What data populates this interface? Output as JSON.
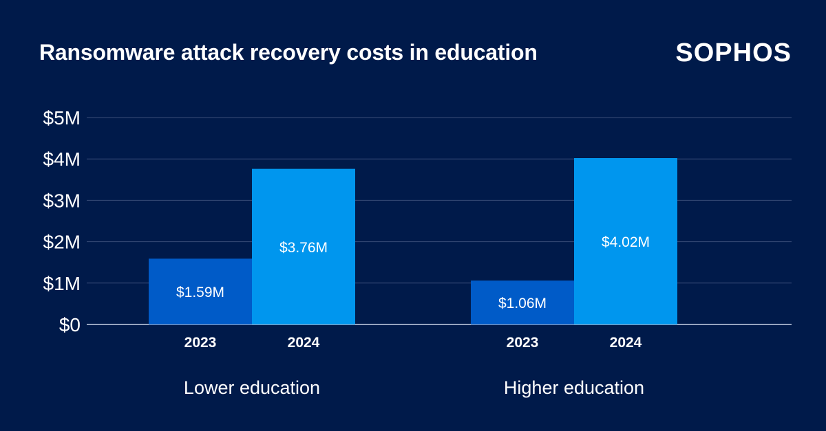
{
  "title": "Ransomware attack recovery costs in education",
  "brand": "SOPHOS",
  "colors": {
    "background": "#001a4a",
    "bar_2023": "#005bc8",
    "bar_2024": "#0096ee",
    "gridline": "#3a4d78",
    "text": "#ffffff"
  },
  "chart_data": {
    "type": "bar",
    "y_ticks": [
      "$0",
      "$1M",
      "$2M",
      "$3M",
      "$4M",
      "$5M"
    ],
    "ylim": [
      0,
      5
    ],
    "unit": "$M",
    "grid": true,
    "groups": [
      {
        "label": "Lower education",
        "bars": [
          {
            "year": "2023",
            "value": 1.59,
            "label": "$1.59M"
          },
          {
            "year": "2024",
            "value": 3.76,
            "label": "$3.76M"
          }
        ]
      },
      {
        "label": "Higher education",
        "bars": [
          {
            "year": "2023",
            "value": 1.06,
            "label": "$1.06M"
          },
          {
            "year": "2024",
            "value": 4.02,
            "label": "$4.02M"
          }
        ]
      }
    ]
  }
}
